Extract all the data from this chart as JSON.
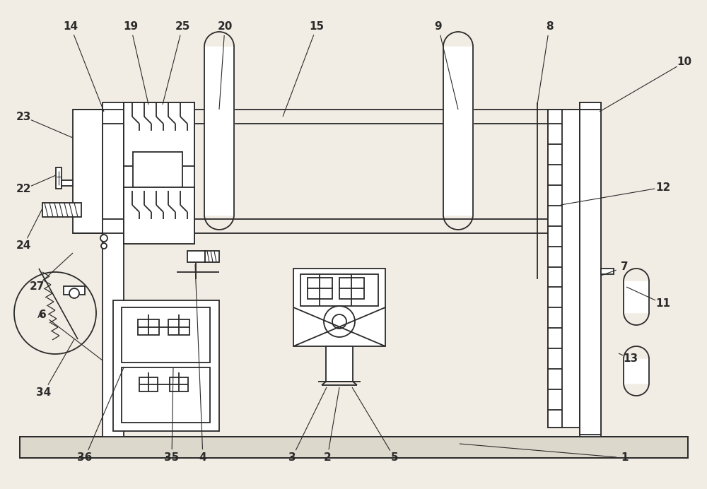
{
  "bg_color": "#f2ede4",
  "line_color": "#2a2a2a",
  "lw": 1.3,
  "fig_width": 10.0,
  "fig_height": 6.92
}
